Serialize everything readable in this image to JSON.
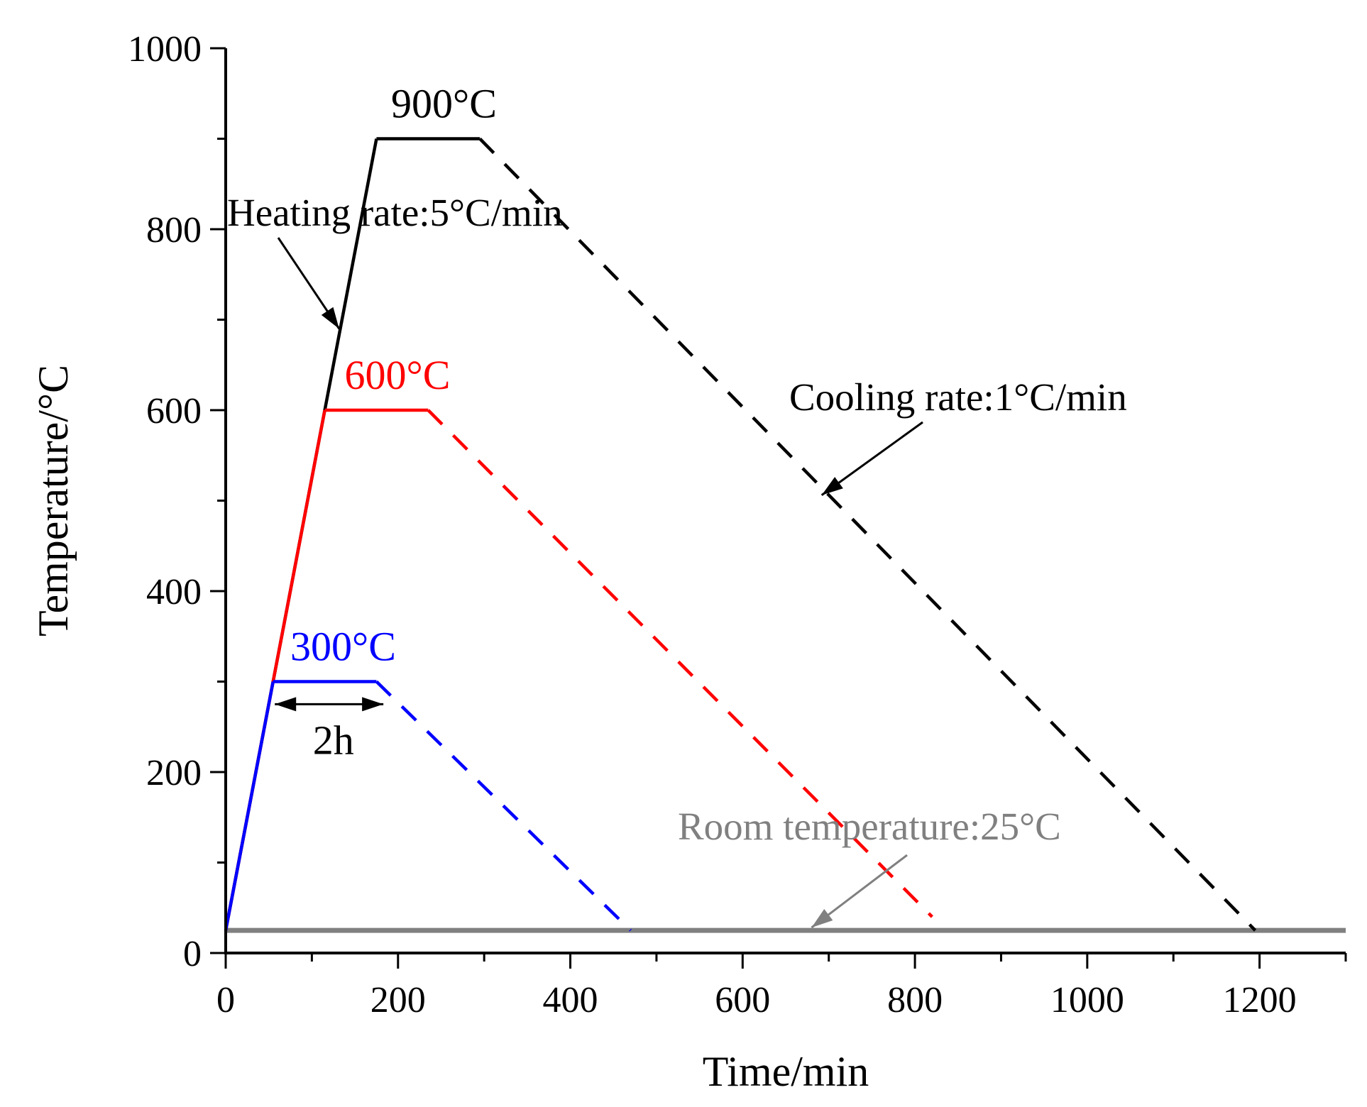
{
  "chart_data": {
    "type": "line",
    "title": "",
    "xlabel": "Time/min",
    "ylabel": "Temperature/°C",
    "xlim": [
      0,
      1300
    ],
    "ylim": [
      0,
      1000
    ],
    "xticks": [
      0,
      200,
      400,
      600,
      800,
      1000,
      1200
    ],
    "yticks": [
      0,
      200,
      400,
      600,
      800,
      1000
    ],
    "xtick_labels": [
      "0",
      "200",
      "400",
      "600",
      "800",
      "1000",
      "1200"
    ],
    "ytick_labels": [
      "0",
      "200",
      "400",
      "600",
      "800",
      "1000"
    ],
    "grid": false,
    "series": [
      {
        "name": "900°C",
        "color": "#000000",
        "label": "900°C",
        "heating": [
          [
            0,
            25
          ],
          [
            175,
            900
          ]
        ],
        "hold": [
          [
            175,
            900
          ],
          [
            295,
            900
          ]
        ],
        "cooling": [
          [
            295,
            900
          ],
          [
            1195,
            25
          ]
        ]
      },
      {
        "name": "600°C",
        "color": "#ff0000",
        "label": "600°C",
        "heating": [
          [
            0,
            25
          ],
          [
            115,
            600
          ]
        ],
        "hold": [
          [
            115,
            600
          ],
          [
            235,
            600
          ]
        ],
        "cooling": [
          [
            235,
            600
          ],
          [
            820,
            40
          ]
        ]
      },
      {
        "name": "300°C",
        "color": "#0000ff",
        "label": "300°C",
        "heating": [
          [
            0,
            25
          ],
          [
            55,
            300
          ]
        ],
        "hold": [
          [
            55,
            300
          ],
          [
            175,
            300
          ]
        ],
        "cooling": [
          [
            175,
            300
          ],
          [
            470,
            25
          ]
        ]
      },
      {
        "name": "Room temperature",
        "color": "#808080",
        "constant": 25,
        "x": [
          0,
          1300
        ]
      }
    ],
    "annotations": {
      "heating": "Heating rate:5°C/min",
      "cooling": "Cooling rate:1°C/min",
      "room": "Room temperature:25°C",
      "hold_duration": "2h"
    }
  }
}
